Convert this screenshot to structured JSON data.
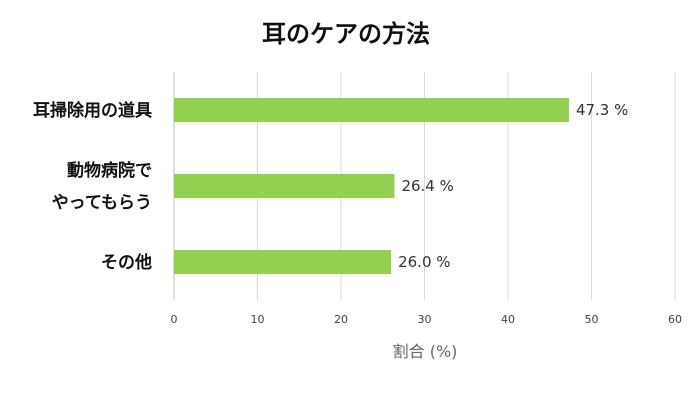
{
  "chart_data": {
    "type": "bar",
    "orientation": "horizontal",
    "title": "耳のケアの方法",
    "categories": [
      [
        "耳掃除用の道具"
      ],
      [
        "動物病院で",
        "やってもらう"
      ],
      [
        "その他"
      ]
    ],
    "values": [
      47.3,
      26.4,
      26.0
    ],
    "data_labels": [
      "47.3 %",
      "26.4 %",
      "26.0 %"
    ],
    "xlabel": "割合 (%)",
    "ylabel": "",
    "xlim": [
      0,
      60
    ],
    "xticks": [
      0,
      10,
      20,
      30,
      40,
      50,
      60
    ],
    "grid": true,
    "legend": "none",
    "bar_color": "#92d050"
  }
}
